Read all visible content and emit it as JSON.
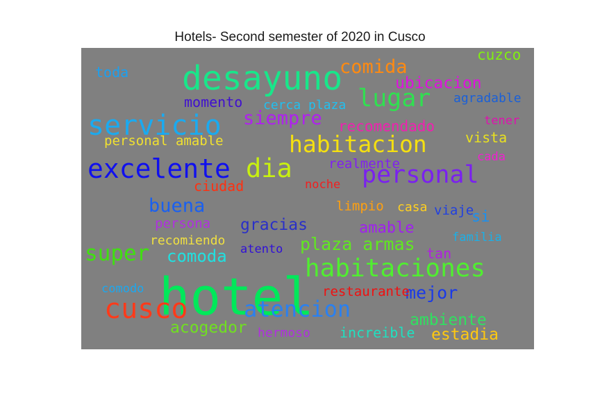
{
  "chart_data": {
    "type": "wordcloud",
    "title": "Hotels- Second semester of 2020 in Cusco",
    "background": "#808080",
    "words": [
      {
        "text": "hotel",
        "color": "#00e85a"
      },
      {
        "text": "desayuno",
        "color": "#19e68a"
      },
      {
        "text": "cusco",
        "color": "#ff3a1a"
      },
      {
        "text": "servicio",
        "color": "#1aaaf0"
      },
      {
        "text": "excelente",
        "color": "#1010ee"
      },
      {
        "text": "habitaciones",
        "color": "#50ee30"
      },
      {
        "text": "personal",
        "color": "#7a20f0"
      },
      {
        "text": "habitacion",
        "color": "#f5e010"
      },
      {
        "text": "dia",
        "color": "#c8f010"
      },
      {
        "text": "atencion",
        "color": "#2a80f0"
      },
      {
        "text": "lugar",
        "color": "#30e050"
      },
      {
        "text": "super",
        "color": "#40e010"
      },
      {
        "text": "comida",
        "color": "#ff8a10"
      },
      {
        "text": "buena",
        "color": "#1a60f0"
      },
      {
        "text": "plaza armas",
        "color": "#60e820"
      },
      {
        "text": "siempre",
        "color": "#b020f0"
      },
      {
        "text": "ubicacion",
        "color": "#e010e0"
      },
      {
        "text": "mejor",
        "color": "#1a3ae8"
      },
      {
        "text": "comoda",
        "color": "#20e0e0"
      },
      {
        "text": "ambiente",
        "color": "#30e060"
      },
      {
        "text": "acogedor",
        "color": "#70e020"
      },
      {
        "text": "gracias",
        "color": "#2a30c8"
      },
      {
        "text": "estadia",
        "color": "#ffc810"
      },
      {
        "text": "recomendado",
        "color": "#f020b0"
      },
      {
        "text": "amable",
        "color": "#a020f0"
      },
      {
        "text": "momento",
        "color": "#4010d0"
      },
      {
        "text": "cuzco",
        "color": "#80f010"
      },
      {
        "text": "toda",
        "color": "#1aa0f0"
      },
      {
        "text": "si",
        "color": "#1a90f0"
      },
      {
        "text": "increible",
        "color": "#20e0c0"
      },
      {
        "text": "vista",
        "color": "#e8e020"
      },
      {
        "text": "personal amable",
        "color": "#f0e030"
      },
      {
        "text": "cerca plaza",
        "color": "#20c0f0"
      },
      {
        "text": "agradable",
        "color": "#1a60d8"
      },
      {
        "text": "ciudad",
        "color": "#ff3010"
      },
      {
        "text": "limpio",
        "color": "#ffa010"
      },
      {
        "text": "persona",
        "color": "#b030e0"
      },
      {
        "text": "realmente",
        "color": "#8020f0"
      },
      {
        "text": "restaurante",
        "color": "#f01010"
      },
      {
        "text": "recomiendo",
        "color": "#f0e040"
      },
      {
        "text": "viaje",
        "color": "#2040e0"
      },
      {
        "text": "casa",
        "color": "#ffd020"
      },
      {
        "text": "tan",
        "color": "#b020e0"
      },
      {
        "text": "noche",
        "color": "#f02020"
      },
      {
        "text": "hermoso",
        "color": "#b030e0"
      },
      {
        "text": "comodo",
        "color": "#1aa8f0"
      },
      {
        "text": "atento",
        "color": "#3010d8"
      },
      {
        "text": "familia",
        "color": "#1ab0e8"
      },
      {
        "text": "tener",
        "color": "#e010b0"
      },
      {
        "text": "cada",
        "color": "#f020d0"
      }
    ]
  }
}
